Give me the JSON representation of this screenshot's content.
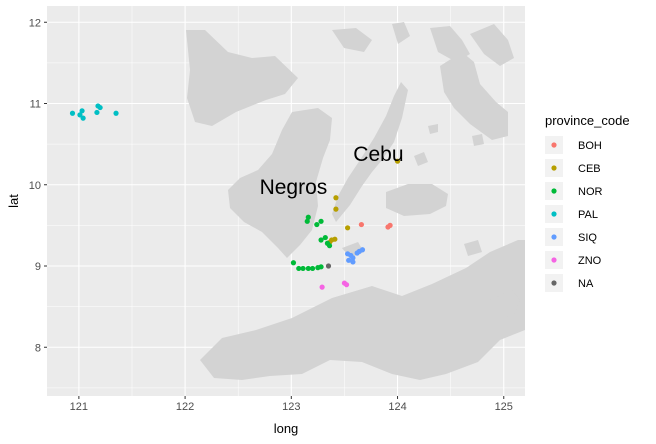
{
  "chart_data": {
    "type": "scatter",
    "xlabel": "long",
    "ylabel": "lat",
    "xlim": [
      120.7,
      125.2
    ],
    "ylim": [
      7.4,
      12.2
    ],
    "x_ticks": [
      121,
      122,
      123,
      124,
      125
    ],
    "y_ticks": [
      8,
      9,
      10,
      11,
      12
    ],
    "grid": true,
    "legend": {
      "title": "province_code",
      "position": "right"
    },
    "annotations": [
      {
        "text": "Negros",
        "x": 123.02,
        "y": 9.97
      },
      {
        "text": "Cebu",
        "x": 123.82,
        "y": 10.38
      }
    ],
    "series": [
      {
        "name": "BOH",
        "color": "#F8766D",
        "points": [
          [
            123.66,
            9.51
          ],
          [
            123.91,
            9.48
          ],
          [
            123.93,
            9.5
          ]
        ]
      },
      {
        "name": "CEB",
        "color": "#B79F00",
        "points": [
          [
            124.0,
            10.29
          ],
          [
            123.42,
            9.84
          ],
          [
            123.42,
            9.7
          ],
          [
            123.53,
            9.47
          ],
          [
            123.41,
            9.33
          ],
          [
            123.38,
            9.32
          ],
          [
            123.36,
            9.29
          ]
        ]
      },
      {
        "name": "NOR",
        "color": "#00BA38",
        "points": [
          [
            123.16,
            9.6
          ],
          [
            123.15,
            9.55
          ],
          [
            123.28,
            9.55
          ],
          [
            123.24,
            9.51
          ],
          [
            123.32,
            9.35
          ],
          [
            123.28,
            9.32
          ],
          [
            123.34,
            9.28
          ],
          [
            123.36,
            9.25
          ],
          [
            123.02,
            9.04
          ],
          [
            123.07,
            8.97
          ],
          [
            123.11,
            8.97
          ],
          [
            123.16,
            8.97
          ],
          [
            123.2,
            8.97
          ],
          [
            123.25,
            8.98
          ],
          [
            123.28,
            8.99
          ]
        ]
      },
      {
        "name": "PAL",
        "color": "#00BFC4",
        "points": [
          [
            120.94,
            10.88
          ],
          [
            121.01,
            10.86
          ],
          [
            121.03,
            10.91
          ],
          [
            121.04,
            10.82
          ],
          [
            121.17,
            10.89
          ],
          [
            121.18,
            10.97
          ],
          [
            121.2,
            10.95
          ],
          [
            121.35,
            10.88
          ]
        ]
      },
      {
        "name": "SIQ",
        "color": "#619CFF",
        "points": [
          [
            123.53,
            9.15
          ],
          [
            123.56,
            9.13
          ],
          [
            123.58,
            9.1
          ],
          [
            123.54,
            9.07
          ],
          [
            123.58,
            9.05
          ],
          [
            123.62,
            9.16
          ],
          [
            123.64,
            9.18
          ],
          [
            123.67,
            9.2
          ]
        ]
      },
      {
        "name": "ZNO",
        "color": "#F564E3",
        "points": [
          [
            123.29,
            8.74
          ],
          [
            123.5,
            8.79
          ],
          [
            123.52,
            8.77
          ]
        ]
      },
      {
        "name": "NA",
        "color": "#666666",
        "points": [
          [
            123.35,
            9.0
          ]
        ]
      }
    ]
  }
}
